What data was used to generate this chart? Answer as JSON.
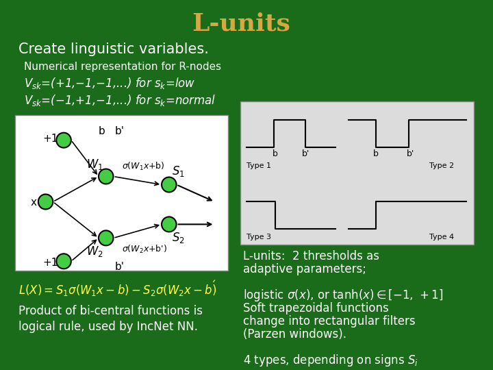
{
  "title": "L-units",
  "title_color": "#D4A843",
  "bg_color": "#1A6B1A",
  "subtitle": "Create linguistic variables.",
  "subtitle_color": "#FFFFFF",
  "line1": "Numerical representation for R-nodes",
  "line1_color": "#FFFFFF",
  "formula_color": "#FFFF44",
  "bottom_text1": "Product of bi-central functions is",
  "bottom_text2": "logical rule, used by IncNet NN.",
  "bottom_text_color": "#FFFFFF",
  "right_text_color": "#FFFFFF",
  "node_color": "#44CC44"
}
